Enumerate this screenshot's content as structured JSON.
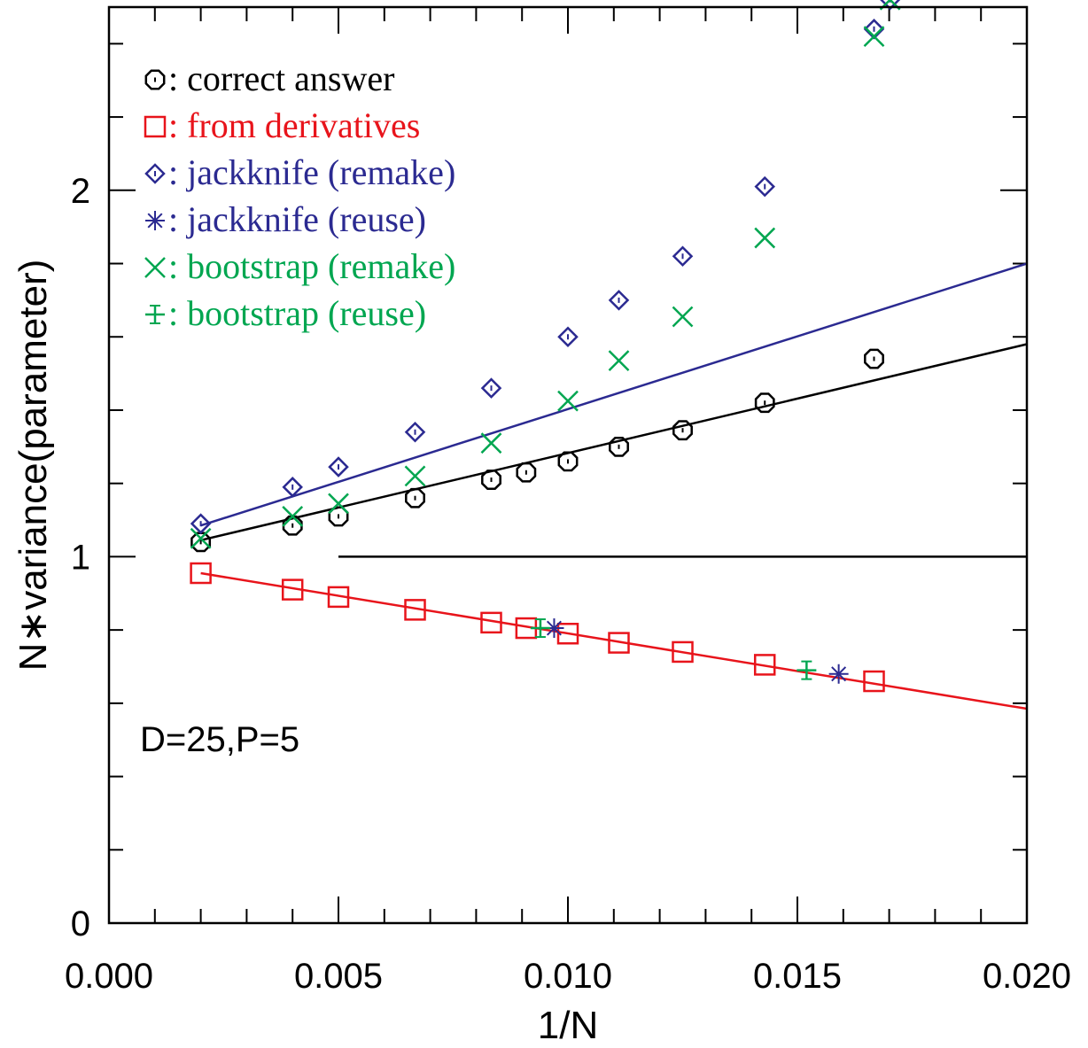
{
  "chart_data": {
    "type": "scatter",
    "xlabel": "1/N",
    "ylabel": "N∗variance(parameter)",
    "xlim": [
      0.0,
      0.02
    ],
    "ylim": [
      0.0,
      2.5
    ],
    "x_ticks": [
      "0.000",
      "0.005",
      "0.010",
      "0.015",
      "0.020"
    ],
    "y_ticks": [
      "0",
      "1",
      "2"
    ],
    "annotation": "D=25,P=5",
    "colors": {
      "black": "#000000",
      "red": "#e8141b",
      "blue": "#2b2a91",
      "green": "#00a650"
    },
    "legend": [
      {
        "symbol": "octagon",
        "label": ": correct answer",
        "color": "#000000"
      },
      {
        "symbol": "square",
        "label": ": from derivatives",
        "color": "#e8141b"
      },
      {
        "symbol": "diamond",
        "label": ": jackknife (remake)",
        "color": "#2b2a91"
      },
      {
        "symbol": "asterisk",
        "label": ": jackknife (reuse)",
        "color": "#2b2a91"
      },
      {
        "symbol": "cross",
        "label": ": bootstrap (remake)",
        "color": "#00a650"
      },
      {
        "symbol": "plus-errbar",
        "label": ": bootstrap (reuse)",
        "color": "#00a650"
      }
    ],
    "series": [
      {
        "symbol": "octagon",
        "color": "#000000",
        "points": [
          [
            0.002,
            1.04
          ],
          [
            0.004,
            1.085
          ],
          [
            0.005,
            1.11
          ],
          [
            0.00667,
            1.16
          ],
          [
            0.00833,
            1.21
          ],
          [
            0.00909,
            1.23
          ],
          [
            0.01,
            1.26
          ],
          [
            0.01111,
            1.3
          ],
          [
            0.0125,
            1.345
          ],
          [
            0.01429,
            1.42
          ],
          [
            0.01667,
            1.54
          ]
        ]
      },
      {
        "symbol": "square",
        "color": "#e8141b",
        "points": [
          [
            0.002,
            0.955
          ],
          [
            0.004,
            0.91
          ],
          [
            0.005,
            0.89
          ],
          [
            0.00667,
            0.855
          ],
          [
            0.00833,
            0.82
          ],
          [
            0.00909,
            0.805
          ],
          [
            0.01,
            0.79
          ],
          [
            0.01111,
            0.765
          ],
          [
            0.0125,
            0.74
          ],
          [
            0.01429,
            0.705
          ],
          [
            0.01667,
            0.66
          ]
        ]
      },
      {
        "symbol": "diamond",
        "color": "#2b2a91",
        "points": [
          [
            0.002,
            1.09
          ],
          [
            0.004,
            1.19
          ],
          [
            0.005,
            1.245
          ],
          [
            0.00667,
            1.34
          ],
          [
            0.00833,
            1.46
          ],
          [
            0.01,
            1.6
          ],
          [
            0.01111,
            1.7
          ],
          [
            0.0125,
            1.82
          ],
          [
            0.01429,
            2.01
          ],
          [
            0.01667,
            2.44
          ],
          [
            0.01702,
            2.52
          ]
        ]
      },
      {
        "symbol": "asterisk",
        "color": "#2b2a91",
        "points": [
          [
            0.0097,
            0.805
          ],
          [
            0.0159,
            0.68
          ]
        ]
      },
      {
        "symbol": "cross",
        "color": "#00a650",
        "points": [
          [
            0.002,
            1.05
          ],
          [
            0.004,
            1.11
          ],
          [
            0.005,
            1.145
          ],
          [
            0.00667,
            1.22
          ],
          [
            0.00833,
            1.31
          ],
          [
            0.01,
            1.425
          ],
          [
            0.01111,
            1.535
          ],
          [
            0.0125,
            1.655
          ],
          [
            0.01429,
            1.87
          ],
          [
            0.01667,
            2.42
          ],
          [
            0.01702,
            2.52
          ]
        ]
      },
      {
        "symbol": "plus-errbar",
        "color": "#00a650",
        "points": [
          [
            0.0094,
            0.805
          ],
          [
            0.0152,
            0.69
          ]
        ]
      }
    ],
    "lines": [
      {
        "color": "#2b2a91",
        "from": [
          0.002,
          1.085
        ],
        "to": [
          0.02,
          1.8
        ]
      },
      {
        "color": "#000000",
        "from": [
          0.002,
          1.045
        ],
        "to": [
          0.02,
          1.58
        ]
      },
      {
        "color": "#e8141b",
        "from": [
          0.002,
          0.955
        ],
        "to": [
          0.02,
          0.585
        ]
      },
      {
        "color": "#000000",
        "from": [
          0.005,
          1.0
        ],
        "to": [
          0.02,
          1.0
        ]
      }
    ]
  }
}
